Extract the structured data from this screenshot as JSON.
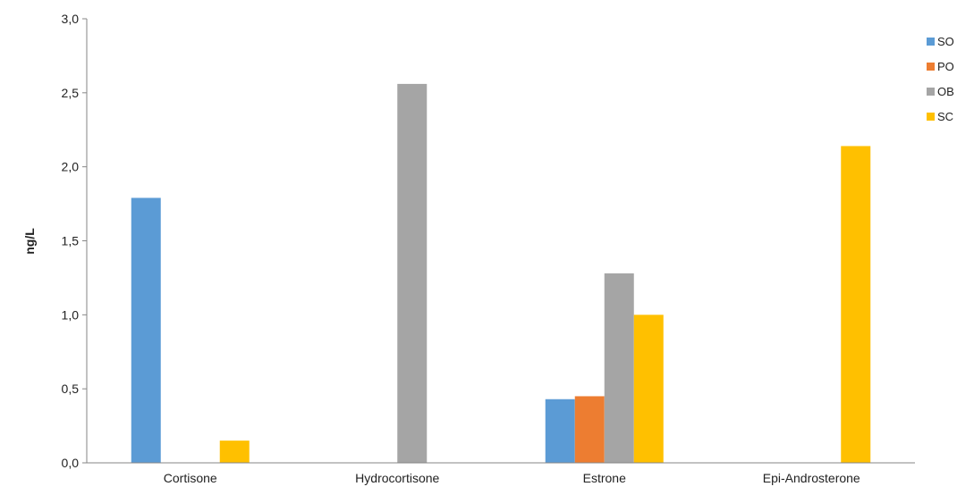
{
  "chart_data": {
    "type": "bar",
    "title": "",
    "xlabel": "",
    "ylabel": "ng/L",
    "ylim": [
      0,
      3.0
    ],
    "yticks": [
      "0,0",
      "0,5",
      "1,0",
      "1,5",
      "2,0",
      "2,5",
      "3,0"
    ],
    "categories": [
      "Cortisone",
      "Hydrocortisone",
      "Estrone",
      "Epi-Androsterone"
    ],
    "series": [
      {
        "name": "SO",
        "color": "#5B9BD5",
        "values": [
          1.79,
          0,
          0.43,
          0
        ]
      },
      {
        "name": "PO",
        "color": "#ED7D31",
        "values": [
          0,
          0,
          0.45,
          0
        ]
      },
      {
        "name": "OB",
        "color": "#A5A5A5",
        "values": [
          0,
          2.56,
          1.28,
          0
        ]
      },
      {
        "name": "SC",
        "color": "#FFC000",
        "values": [
          0.15,
          0,
          1.0,
          2.14
        ]
      }
    ],
    "grid": false,
    "legend_position": "right"
  }
}
